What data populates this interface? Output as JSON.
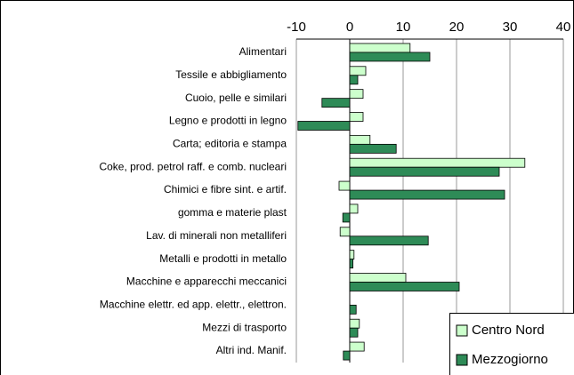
{
  "chart_data": {
    "type": "hbar",
    "categories": [
      "Alimentari",
      "Tessile e abbigliamento",
      "Cuoio, pelle e similari",
      "Legno e prodotti in legno",
      "Carta; editoria e stampa",
      "Coke, prod. petrol raff. e comb. nucleari",
      "Chimici e fibre sint. e artif.",
      "gomma e materie plast",
      "Lav. di minerali non metalliferi",
      "Metalli e prodotti in metallo",
      "Macchine e apparecchi meccanici",
      "Macchine elettr. ed app. elettr., elettron.",
      "Mezzi di trasporto",
      "Altri ind. Manif."
    ],
    "series": [
      {
        "name": "Centro Nord",
        "color": "#ccffcc",
        "values": [
          11.3,
          3,
          2.5,
          2.5,
          3.8,
          32.8,
          -2,
          1.5,
          -1.8,
          0.8,
          10.5,
          0,
          1.8,
          2.7
        ]
      },
      {
        "name": "Mezzogiorno",
        "color": "#2e8b57",
        "values": [
          15,
          1.5,
          -5.2,
          -9.7,
          8.7,
          28,
          29,
          -1.3,
          14.7,
          0.6,
          20.5,
          1.2,
          1.5,
          -1.2
        ]
      }
    ],
    "xlim": [
      -10,
      40
    ],
    "xticks": [
      -10,
      0,
      10,
      20,
      30,
      40
    ],
    "grid": true,
    "legend": "bottom-right"
  }
}
